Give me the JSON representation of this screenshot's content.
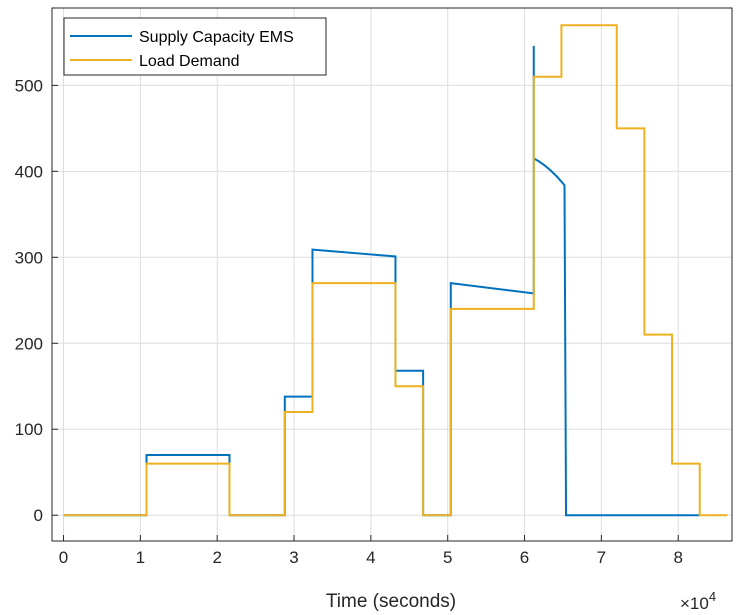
{
  "chart_data": {
    "type": "line",
    "title": "",
    "xlabel": "Time (seconds)",
    "ylabel": "",
    "x_exponent_label": "×10",
    "x_exponent_power": "4",
    "xlim": [
      -1500,
      87000
    ],
    "ylim": [
      -30,
      590
    ],
    "x_ticks": [
      0,
      10000,
      20000,
      30000,
      40000,
      50000,
      60000,
      70000,
      80000
    ],
    "x_tick_labels": [
      "0",
      "1",
      "2",
      "3",
      "4",
      "5",
      "6",
      "7",
      "8"
    ],
    "y_ticks": [
      0,
      100,
      200,
      300,
      400,
      500
    ],
    "y_tick_labels": [
      "0",
      "100",
      "200",
      "300",
      "400",
      "500"
    ],
    "grid": true,
    "legend_position": "top-left",
    "series": [
      {
        "name": "Supply Capacity EMS",
        "color": "#0072BD",
        "points": [
          [
            0,
            0
          ],
          [
            10800,
            0
          ],
          [
            10800,
            70
          ],
          [
            21600,
            70
          ],
          [
            21600,
            0
          ],
          [
            28800,
            0
          ],
          [
            28800,
            138
          ],
          [
            32400,
            138
          ],
          [
            32400,
            309
          ],
          [
            43200,
            301
          ],
          [
            43200,
            168
          ],
          [
            46800,
            168
          ],
          [
            46800,
            0
          ],
          [
            50400,
            0
          ],
          [
            50400,
            270
          ],
          [
            61200,
            258
          ],
          [
            61200,
            546
          ],
          [
            61200,
            415
          ],
          [
            61800,
            412
          ],
          [
            62600,
            407
          ],
          [
            63400,
            401
          ],
          [
            64200,
            394
          ],
          [
            64800,
            388
          ],
          [
            65200,
            384
          ],
          [
            65200,
            384
          ],
          [
            65400,
            0
          ],
          [
            82800,
            0
          ]
        ]
      },
      {
        "name": "Load Demand",
        "color": "#EDB120",
        "points": [
          [
            0,
            0
          ],
          [
            10800,
            0
          ],
          [
            10800,
            60
          ],
          [
            21600,
            60
          ],
          [
            21600,
            0
          ],
          [
            28800,
            0
          ],
          [
            28800,
            120
          ],
          [
            32400,
            120
          ],
          [
            32400,
            270
          ],
          [
            43200,
            270
          ],
          [
            43200,
            150
          ],
          [
            46800,
            150
          ],
          [
            46800,
            0
          ],
          [
            50400,
            0
          ],
          [
            50400,
            240
          ],
          [
            61200,
            240
          ],
          [
            61200,
            510
          ],
          [
            64800,
            510
          ],
          [
            64800,
            570
          ],
          [
            72000,
            570
          ],
          [
            72000,
            450
          ],
          [
            75600,
            450
          ],
          [
            75600,
            210
          ],
          [
            79200,
            210
          ],
          [
            79200,
            60
          ],
          [
            82800,
            60
          ],
          [
            82800,
            0
          ],
          [
            86400,
            0
          ]
        ]
      }
    ]
  }
}
